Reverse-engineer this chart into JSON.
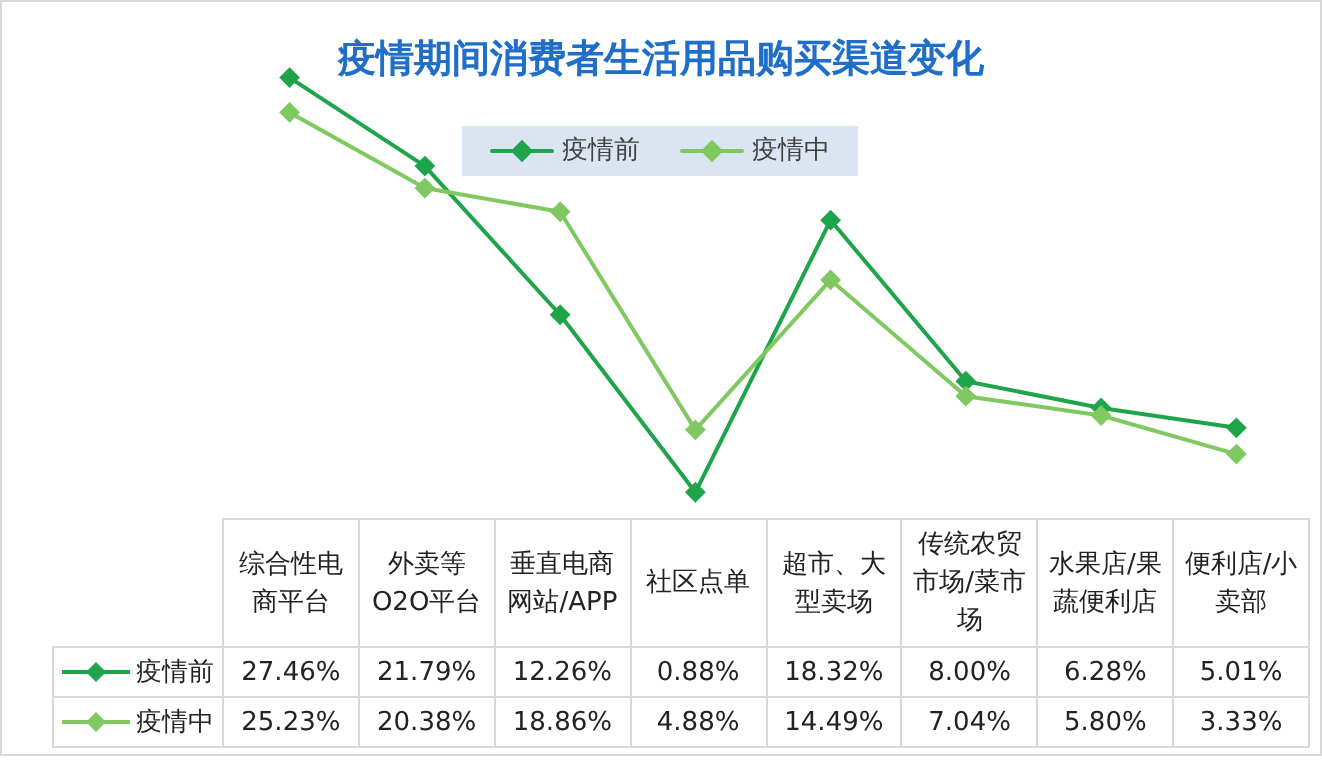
{
  "chart_data": {
    "type": "line",
    "title": "疫情期间消费者生活用品购买渠道变化",
    "categories": [
      "综合性电商平台",
      "外卖等O2O平台",
      "垂直电商网站/APP",
      "社区点单",
      "超市、大型卖场",
      "传统农贸市场/菜市场",
      "水果店/果蔬便利店",
      "便利店/小卖部"
    ],
    "series": [
      {
        "name": "疫情前",
        "color": "#1ea54b",
        "values": [
          27.46,
          21.79,
          12.26,
          0.88,
          18.32,
          8.0,
          6.28,
          5.01
        ],
        "value_labels": [
          "27.46%",
          "21.79%",
          "12.26%",
          "0.88%",
          "18.32%",
          "8.00%",
          "6.28%",
          "5.01%"
        ]
      },
      {
        "name": "疫情中",
        "color": "#80c961",
        "values": [
          25.23,
          20.38,
          18.86,
          4.88,
          14.49,
          7.04,
          5.8,
          3.33
        ],
        "value_labels": [
          "25.23%",
          "20.38%",
          "18.86%",
          "4.88%",
          "14.49%",
          "7.04%",
          "5.80%",
          "3.33%"
        ]
      }
    ],
    "legend": "top",
    "grid": false,
    "marker": "diamond",
    "line_style": "solid"
  }
}
